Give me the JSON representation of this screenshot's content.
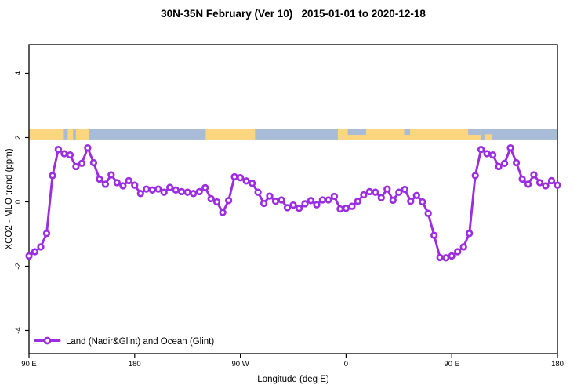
{
  "page": {
    "background": "#ffffff",
    "frame_color": "#000000"
  },
  "chart_data": {
    "type": "line",
    "title": "30N-35N February (Ver 10)   2015-01-01 to 2020-12-18",
    "xlabel": "Longitude (deg E)",
    "ylabel": "XCO2 - MLO trend (ppm)",
    "grid": false,
    "legend_position": "bottom-left-inside",
    "x_axis": {
      "note": "axis spans 450 deg of longitude starting at 90E, wrapping eastward through 180, 90W, 0, 90E to 180",
      "range_deg": [
        0,
        450
      ],
      "ticks": [
        {
          "pos": 0,
          "label": "90 E"
        },
        {
          "pos": 90,
          "label": "180"
        },
        {
          "pos": 180,
          "label": "90 W"
        },
        {
          "pos": 270,
          "label": "0"
        },
        {
          "pos": 360,
          "label": "90 E"
        },
        {
          "pos": 450,
          "label": "180"
        }
      ]
    },
    "y_axis": {
      "lim": [
        -4.72,
        4.89
      ],
      "ticks": [
        -4,
        -2,
        0,
        2,
        4
      ],
      "tick_labels": [
        "-4",
        "-2",
        "0",
        "2",
        "4"
      ]
    },
    "series": [
      {
        "name": "Land (Nadir&Glint) and Ocean (Glint)",
        "color": "#9c2de0",
        "marker": "open-circle",
        "marker_fill": "#ffffff",
        "x_start_deg": 0,
        "x_step_deg": 5,
        "lon_labels_start": "90E",
        "values": [
          -1.68,
          -1.55,
          -1.4,
          -0.98,
          0.82,
          1.63,
          1.5,
          1.46,
          1.1,
          1.2,
          1.68,
          1.22,
          0.71,
          0.55,
          0.84,
          0.6,
          0.5,
          0.66,
          0.52,
          0.26,
          0.4,
          0.37,
          0.4,
          0.3,
          0.45,
          0.37,
          0.32,
          0.3,
          0.26,
          0.32,
          0.44,
          0.1,
          0.0,
          -0.33,
          0.04,
          0.78,
          0.75,
          0.65,
          0.58,
          0.3,
          -0.05,
          0.18,
          0.02,
          0.06,
          -0.18,
          -0.1,
          -0.2,
          -0.06,
          0.04,
          -0.09,
          0.06,
          0.06,
          0.17,
          -0.22,
          -0.2,
          -0.14,
          0.02,
          0.22,
          0.32,
          0.3,
          0.13,
          0.4,
          0.05,
          0.3,
          0.39,
          0.02,
          0.2,
          0.0,
          -0.36,
          -1.04,
          -1.73,
          -1.74,
          -1.68,
          -1.55,
          -1.4,
          -0.98,
          0.82,
          1.63,
          1.5,
          1.46,
          1.1,
          1.2,
          1.68,
          1.22,
          0.71,
          0.55,
          0.84,
          0.6,
          0.5,
          0.66,
          0.52
        ]
      }
    ],
    "land_ocean_strip": {
      "description": "horizontal land/ocean mask band drawn inside plot near y=2.1",
      "y_top_value": 2.26,
      "y_bottom_value": 1.94,
      "ocean_color": "#a9bcd7",
      "land_color": "#fbd67f",
      "land_segments_deg": [
        [
          0,
          29
        ],
        [
          33,
          37.5
        ],
        [
          40,
          51
        ],
        [
          150.5,
          192.5
        ],
        [
          263,
          384.5
        ]
      ],
      "ocean_notches_top_deg": [
        [
          271.5,
          287
        ],
        [
          319.5,
          324.5
        ],
        [
          374,
          384.5
        ]
      ],
      "land_dots_bottom_deg": [
        [
          388.5,
          394
        ]
      ]
    }
  }
}
